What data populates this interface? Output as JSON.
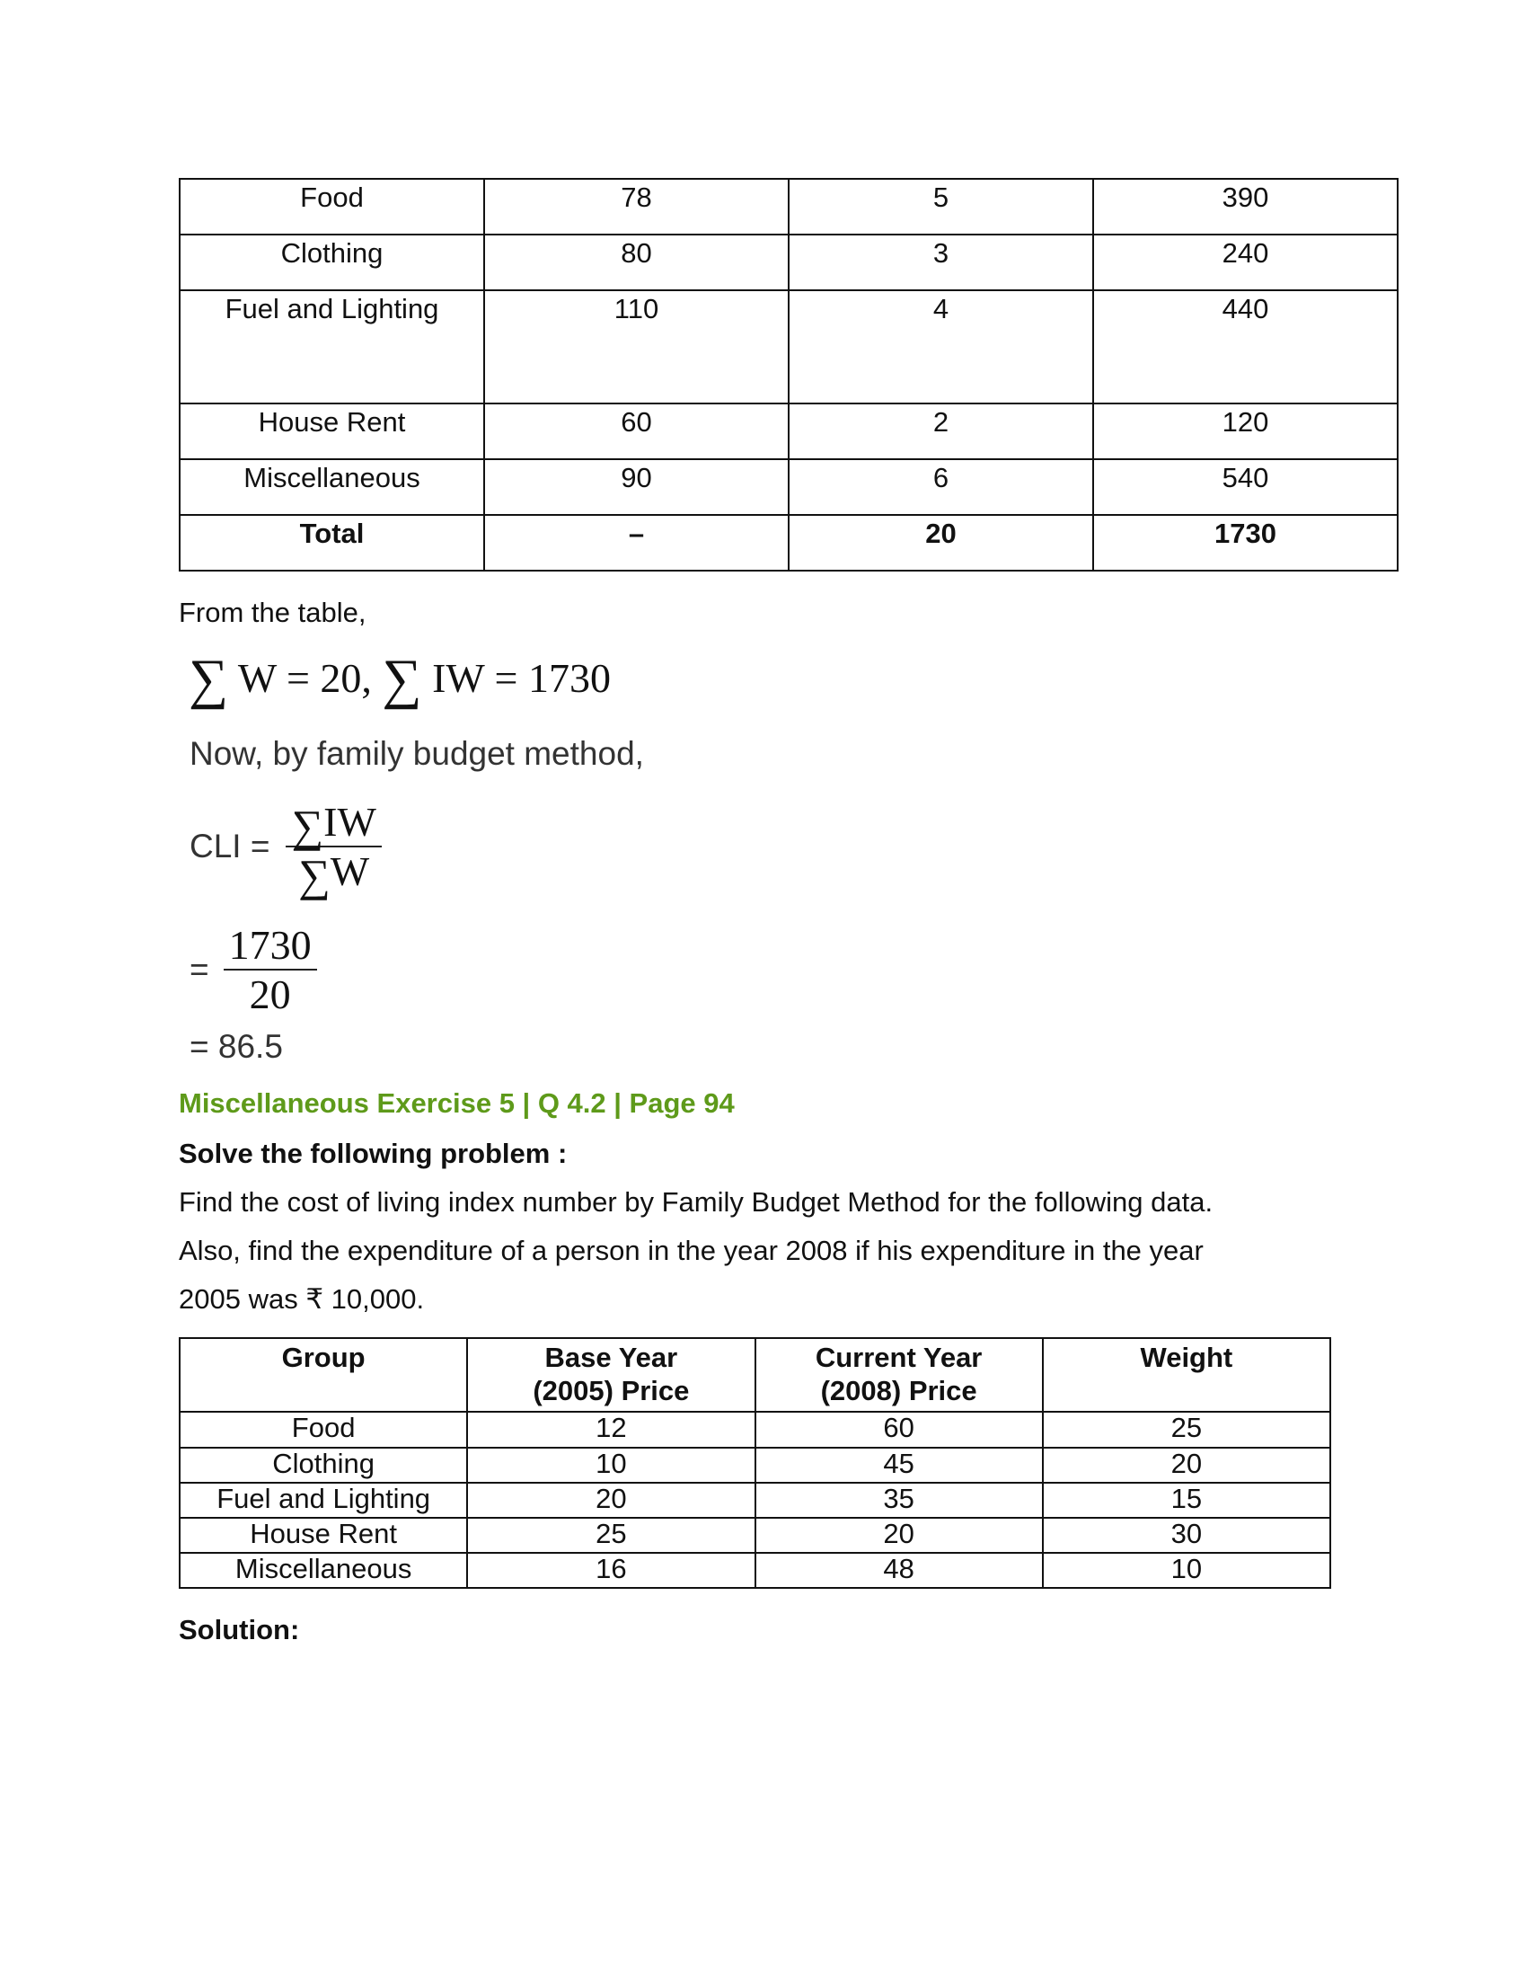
{
  "table1": {
    "rows": [
      [
        "Food",
        "78",
        "5",
        "390"
      ],
      [
        "Clothing",
        "80",
        "3",
        "240"
      ],
      [
        "Fuel and Lighting",
        "110",
        "4",
        "440"
      ],
      [
        "House Rent",
        "60",
        "2",
        "120"
      ],
      [
        "Miscellaneous",
        "90",
        "6",
        "540"
      ],
      [
        "Total",
        "–",
        "20",
        "1730"
      ]
    ]
  },
  "solution1": {
    "from_table": "From the table,",
    "sum_line": {
      "sigma": "∑",
      "w_eq": "W = 20,",
      "iw_eq": "IW = 1730"
    },
    "method_line": "Now, by family budget method,",
    "cli_label": "CLI =",
    "cli_num": "IW",
    "cli_den": "W",
    "eq_sign": "=",
    "frac_num": "1730",
    "frac_den": "20",
    "result": "= 86.5"
  },
  "question": {
    "heading": "Miscellaneous Exercise 5 | Q 4.2 | Page 94",
    "heading_color": "#5e9a1a",
    "instruction": "Solve the following problem :",
    "lines": [
      "Find the cost of living index number by Family Budget Method for the following data.",
      "Also, find the expenditure of a person in the year 2008 if his expenditure in the year",
      "2005 was ₹ 10,000."
    ]
  },
  "table2": {
    "headers": [
      [
        "Group",
        ""
      ],
      [
        "Base Year",
        "(2005) Price"
      ],
      [
        "Current Year",
        "(2008) Price"
      ],
      [
        "Weight",
        ""
      ]
    ],
    "rows": [
      [
        "Food",
        "12",
        "60",
        "25"
      ],
      [
        "Clothing",
        "10",
        "45",
        "20"
      ],
      [
        "Fuel and Lighting",
        "20",
        "35",
        "15"
      ],
      [
        "House Rent",
        "25",
        "20",
        "30"
      ],
      [
        "Miscellaneous",
        "16",
        "48",
        "10"
      ]
    ]
  },
  "solution_label": "Solution:"
}
